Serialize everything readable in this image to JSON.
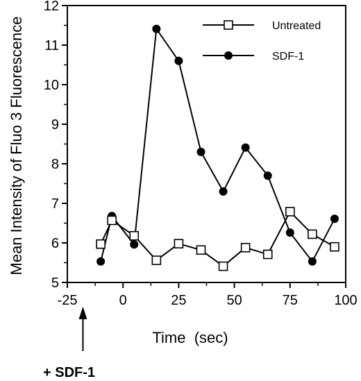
{
  "chart_data": {
    "type": "line",
    "xlabel": "Time  (sec)",
    "ylabel": "Mean Intensity of Fluo 3 Fluorescence",
    "xlim": [
      -25,
      100
    ],
    "ylim": [
      5,
      12
    ],
    "xticks": [
      -25,
      0,
      25,
      50,
      75,
      100
    ],
    "yticks": [
      5,
      6,
      7,
      8,
      9,
      10,
      11,
      12
    ],
    "grid": false,
    "legend": "top-right",
    "series": [
      {
        "name": "Untreated",
        "marker": "open-square",
        "color": "#000000",
        "points": [
          {
            "x": -10,
            "y": 5.97
          },
          {
            "x": -5,
            "y": 6.57
          },
          {
            "x": 5,
            "y": 6.18
          },
          {
            "x": 15,
            "y": 5.56
          },
          {
            "x": 25,
            "y": 5.98
          },
          {
            "x": 35,
            "y": 5.82
          },
          {
            "x": 45,
            "y": 5.41
          },
          {
            "x": 55,
            "y": 5.88
          },
          {
            "x": 65,
            "y": 5.71
          },
          {
            "x": 75,
            "y": 6.79
          },
          {
            "x": 85,
            "y": 6.22
          },
          {
            "x": 95,
            "y": 5.9
          }
        ]
      },
      {
        "name": "SDF-1",
        "marker": "filled-circle",
        "color": "#000000",
        "points": [
          {
            "x": -10,
            "y": 5.53
          },
          {
            "x": -5,
            "y": 6.68
          },
          {
            "x": 5,
            "y": 5.96
          },
          {
            "x": 15,
            "y": 11.41
          },
          {
            "x": 25,
            "y": 10.6
          },
          {
            "x": 35,
            "y": 8.3
          },
          {
            "x": 45,
            "y": 7.3
          },
          {
            "x": 55,
            "y": 8.41
          },
          {
            "x": 65,
            "y": 7.7
          },
          {
            "x": 75,
            "y": 6.26
          },
          {
            "x": 85,
            "y": 5.53
          },
          {
            "x": 95,
            "y": 6.61
          }
        ]
      }
    ],
    "annotations": [
      {
        "text": "+  SDF-1",
        "arrow_at_x": -18
      }
    ]
  }
}
